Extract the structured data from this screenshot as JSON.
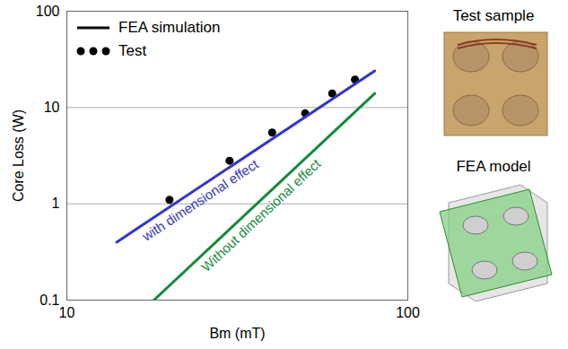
{
  "chart_data": {
    "type": "line",
    "x_label": "Bm (mT)",
    "y_label": "Core Loss (W)",
    "log": true,
    "grid": true,
    "xlim": [
      10,
      100
    ],
    "ylim": [
      0.1,
      100
    ],
    "xticks": [
      10,
      100
    ],
    "yticks": [
      0.1,
      1,
      10,
      100
    ],
    "legend": "top-left",
    "legend_entries": [
      {
        "label": "FEA simulation",
        "type": "line",
        "color": "#000000"
      },
      {
        "label": "Test",
        "type": "scatter",
        "marker": "circle",
        "color": "#000000"
      }
    ],
    "series": [
      {
        "name": "Test",
        "type": "scatter",
        "marker": "circle",
        "color": "#000000",
        "x": [
          20,
          30,
          40,
          50,
          60,
          70
        ],
        "values": [
          1.1,
          2.8,
          5.5,
          8.7,
          14,
          19.5
        ]
      },
      {
        "name": "with dimensional effect",
        "type": "line",
        "line_style": "solid",
        "color": "#3535c8",
        "x": [
          14,
          80
        ],
        "values": [
          0.4,
          24
        ]
      },
      {
        "name": "Without dimensional effect",
        "type": "line",
        "line_style": "solid",
        "color": "#148a3c",
        "x": [
          18,
          80
        ],
        "values": [
          0.1,
          14
        ]
      }
    ],
    "side_labels": [
      "Test sample",
      "FEA model"
    ]
  }
}
